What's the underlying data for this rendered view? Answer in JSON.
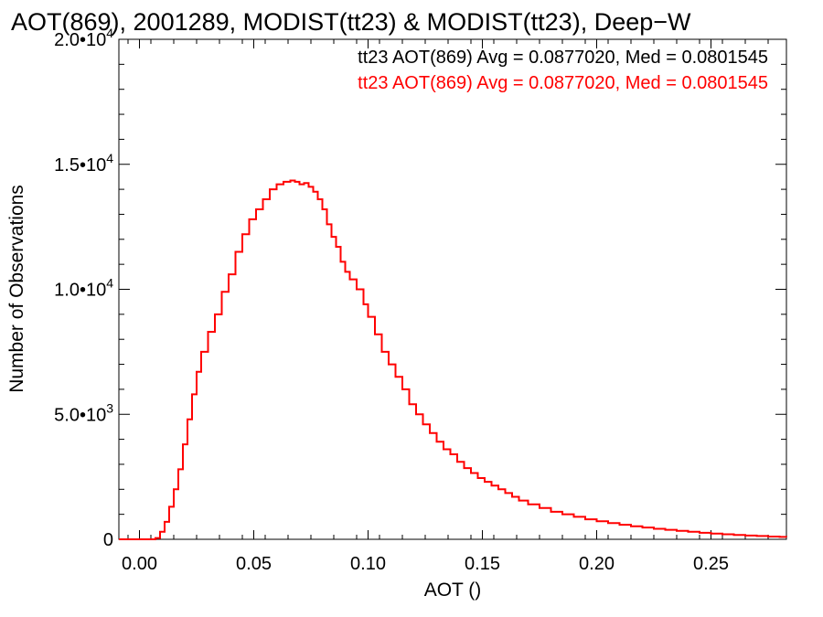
{
  "chart_data": {
    "type": "line",
    "title": "AOT(869), 2001289, MODIST(tt23) & MODIST(tt23), Deep−W",
    "xlabel": "AOT ()",
    "ylabel": "Number of Observations",
    "xlim": [
      -0.009,
      0.283
    ],
    "ylim": [
      0,
      20000
    ],
    "x_ticks": [
      {
        "value": 0.0,
        "label": "0.00"
      },
      {
        "value": 0.05,
        "label": "0.05"
      },
      {
        "value": 0.1,
        "label": "0.10"
      },
      {
        "value": 0.15,
        "label": "0.15"
      },
      {
        "value": 0.2,
        "label": "0.20"
      },
      {
        "value": 0.25,
        "label": "0.25"
      }
    ],
    "y_ticks": [
      {
        "value": 0,
        "mantissa": "0",
        "exponent": ""
      },
      {
        "value": 5000,
        "mantissa": "5.0•10",
        "exponent": "3"
      },
      {
        "value": 10000,
        "mantissa": "1.0•10",
        "exponent": "4"
      },
      {
        "value": 15000,
        "mantissa": "1.5•10",
        "exponent": "4"
      },
      {
        "value": 20000,
        "mantissa": "2.0•10",
        "exponent": "4"
      }
    ],
    "grid": false,
    "annotations": [
      {
        "text": "tt23 AOT(869) Avg = 0.0877020, Med = 0.0801545",
        "color": "#000000"
      },
      {
        "text": "tt23 AOT(869) Avg = 0.0877020, Med = 0.0801545",
        "color": "#ff0000"
      }
    ],
    "series": [
      {
        "color": "#ff0000",
        "step": true,
        "x": [
          -0.009,
          0.0,
          0.004,
          0.007,
          0.009,
          0.011,
          0.013,
          0.015,
          0.017,
          0.019,
          0.021,
          0.023,
          0.025,
          0.027,
          0.03,
          0.033,
          0.036,
          0.039,
          0.042,
          0.045,
          0.048,
          0.051,
          0.054,
          0.057,
          0.06,
          0.063,
          0.066,
          0.068,
          0.07,
          0.072,
          0.074,
          0.076,
          0.078,
          0.08,
          0.082,
          0.084,
          0.086,
          0.088,
          0.09,
          0.092,
          0.095,
          0.098,
          0.1,
          0.103,
          0.106,
          0.109,
          0.112,
          0.115,
          0.118,
          0.121,
          0.124,
          0.127,
          0.13,
          0.133,
          0.136,
          0.139,
          0.142,
          0.145,
          0.148,
          0.151,
          0.154,
          0.157,
          0.16,
          0.163,
          0.166,
          0.17,
          0.175,
          0.18,
          0.185,
          0.19,
          0.195,
          0.2,
          0.205,
          0.21,
          0.215,
          0.22,
          0.225,
          0.23,
          0.235,
          0.24,
          0.245,
          0.25,
          0.255,
          0.26,
          0.265,
          0.27,
          0.275,
          0.28,
          0.283
        ],
        "values": [
          0,
          0,
          0,
          50,
          300,
          700,
          1300,
          2000,
          2800,
          3800,
          4800,
          5800,
          6700,
          7500,
          8300,
          9000,
          9900,
          10600,
          11500,
          12200,
          12800,
          13200,
          13600,
          14000,
          14200,
          14300,
          14350,
          14300,
          14200,
          14250,
          14100,
          13900,
          13600,
          13200,
          12600,
          12100,
          11700,
          11100,
          10700,
          10400,
          10000,
          9400,
          8900,
          8200,
          7500,
          7000,
          6500,
          6000,
          5400,
          5000,
          4600,
          4250,
          3900,
          3600,
          3400,
          3100,
          2850,
          2650,
          2450,
          2300,
          2150,
          2000,
          1850,
          1700,
          1550,
          1400,
          1250,
          1100,
          1000,
          900,
          800,
          720,
          650,
          580,
          520,
          470,
          420,
          380,
          340,
          300,
          260,
          230,
          200,
          175,
          150,
          130,
          110,
          95,
          90
        ]
      }
    ]
  }
}
